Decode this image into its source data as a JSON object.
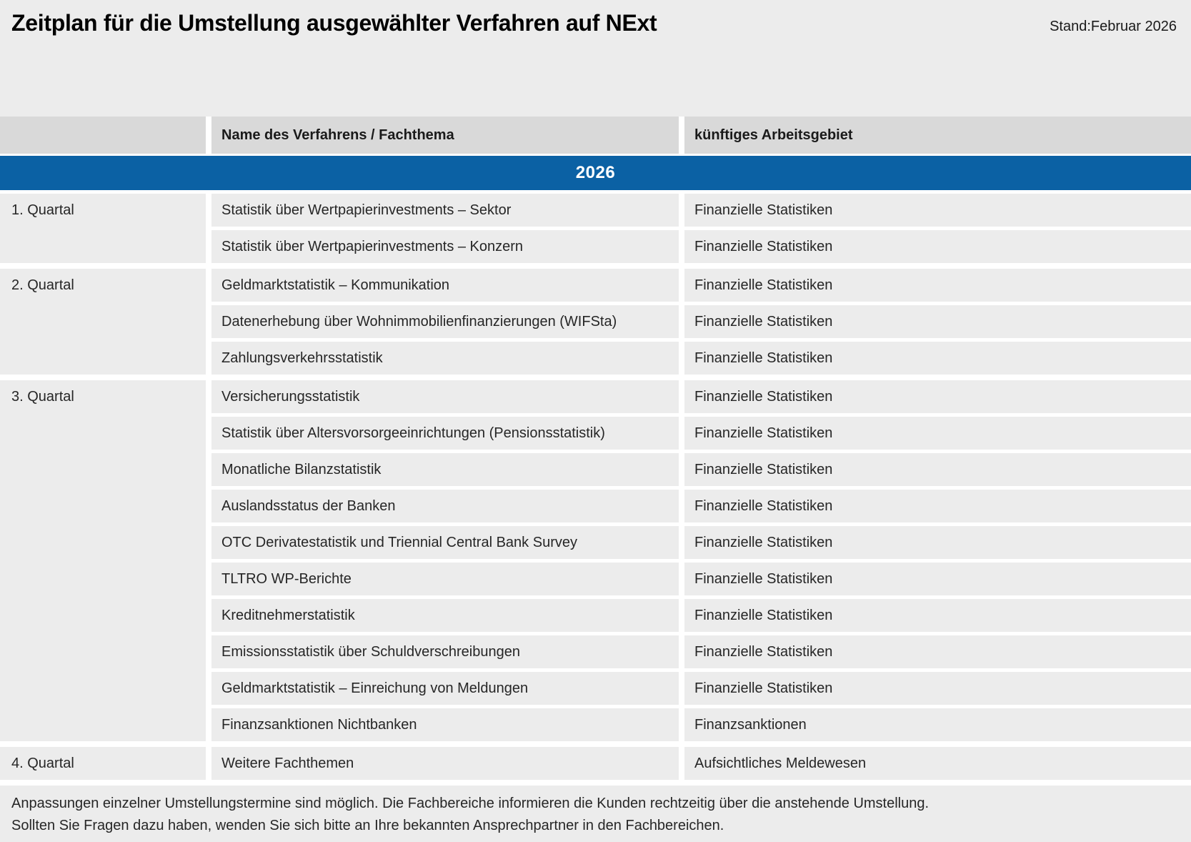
{
  "header": {
    "title": "Zeitplan für die Umstellung ausgewählter Verfahren auf NExt",
    "stand": "Stand:Februar 2026"
  },
  "colors": {
    "banner_blue": "#0b61a4",
    "header_gray": "#d9d9d9",
    "cell_gray": "#ececec",
    "separator_white": "#ffffff"
  },
  "table": {
    "columns": {
      "procedure": "Name des Verfahrens / Fachthema",
      "area": "künftiges Arbeitsgebiet"
    },
    "year_banner": "2026",
    "groups": [
      {
        "quarter": "1. Quartal",
        "rows": [
          {
            "name": "Statistik über Wertpapierinvestments – Sektor",
            "area": "Finanzielle Statistiken"
          },
          {
            "name": "Statistik über Wertpapierinvestments – Konzern",
            "area": "Finanzielle Statistiken"
          }
        ]
      },
      {
        "quarter": "2. Quartal",
        "rows": [
          {
            "name": "Geldmarktstatistik – Kommunikation",
            "area": "Finanzielle Statistiken"
          },
          {
            "name": "Datenerhebung über Wohnimmobilienfinanzierungen (WIFSta)",
            "area": "Finanzielle Statistiken"
          },
          {
            "name": "Zahlungsverkehrsstatistik",
            "area": "Finanzielle Statistiken"
          }
        ]
      },
      {
        "quarter": "3. Quartal",
        "rows": [
          {
            "name": "Versicherungsstatistik",
            "area": "Finanzielle Statistiken"
          },
          {
            "name": "Statistik über Altersvorsorgeeinrichtungen (Pensionsstatistik)",
            "area": "Finanzielle Statistiken"
          },
          {
            "name": "Monatliche Bilanzstatistik",
            "area": "Finanzielle Statistiken"
          },
          {
            "name": "Auslandsstatus der Banken",
            "area": "Finanzielle Statistiken"
          },
          {
            "name": "OTC Derivatestatistik und Triennial Central Bank Survey",
            "area": "Finanzielle Statistiken"
          },
          {
            "name": "TLTRO WP-Berichte",
            "area": "Finanzielle Statistiken"
          },
          {
            "name": "Kreditnehmerstatistik",
            "area": "Finanzielle Statistiken"
          },
          {
            "name": "Emissionsstatistik über Schuldverschreibungen",
            "area": "Finanzielle Statistiken"
          },
          {
            "name": "Geldmarktstatistik – Einreichung von Meldungen",
            "area": "Finanzielle Statistiken"
          },
          {
            "name": "Finanzsanktionen Nichtbanken",
            "area": "Finanzsanktionen"
          }
        ]
      },
      {
        "quarter": "4. Quartal",
        "rows": [
          {
            "name": "Weitere Fachthemen",
            "area": "Aufsichtliches Meldewesen"
          }
        ]
      }
    ]
  },
  "footer": {
    "line1": "Anpassungen einzelner Umstellungstermine sind möglich. Die Fachbereiche informieren die Kunden rechtzeitig über die anstehende Umstellung.",
    "line2": "Sollten Sie Fragen dazu haben, wenden Sie sich bitte an Ihre bekannten Ansprechpartner in den Fachbereichen."
  }
}
